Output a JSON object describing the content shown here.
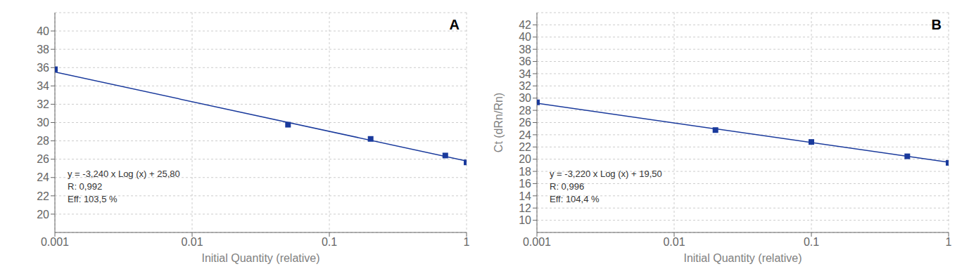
{
  "chart_data": [
    {
      "type": "scatter",
      "title": "A",
      "x_label": "Initial Quantity (relative)",
      "log": "x",
      "grid": true,
      "xlim": [
        0.001,
        1
      ],
      "xticks": [
        0.001,
        0.01,
        0.1,
        1
      ],
      "ylim": [
        18,
        42
      ],
      "yticks": [
        20,
        22,
        24,
        26,
        28,
        30,
        32,
        34,
        36,
        38,
        40
      ],
      "annotations": [
        "y = -3,240 x Log (x) + 25,80",
        "R: 0,992",
        "Eff: 103,5 %"
      ],
      "series": [
        {
          "type": "line",
          "color": "#1a3a9c",
          "x": [
            0.001,
            1
          ],
          "values": [
            35.52,
            25.8
          ]
        },
        {
          "type": "scatter",
          "marker": "square",
          "color": "#1a3a9c",
          "x": [
            0.001,
            0.05,
            0.2,
            0.7,
            1.0
          ],
          "values": [
            35.82,
            29.7653,
            28.2147,
            26.4019,
            25.65
          ]
        }
      ]
    },
    {
      "type": "scatter",
      "title": "B",
      "x_label": "Initial Quantity (relative)",
      "y_label": "Ct (dRn/Rn)",
      "log": "x",
      "grid": true,
      "xlim": [
        0.001,
        1
      ],
      "xticks": [
        0.001,
        0.01,
        0.1,
        1
      ],
      "ylim": [
        8,
        44
      ],
      "yticks": [
        10,
        12,
        14,
        16,
        18,
        20,
        22,
        24,
        26,
        28,
        30,
        32,
        34,
        36,
        38,
        40,
        42
      ],
      "annotations": [
        "y = -3,220 x Log (x) + 19,50",
        "R: 0,996",
        "Eff: 104,4 %"
      ],
      "series": [
        {
          "type": "line",
          "color": "#1a3a9c",
          "x": [
            0.001,
            1
          ],
          "values": [
            29.16,
            19.5
          ]
        },
        {
          "type": "scatter",
          "marker": "square",
          "color": "#1a3a9c",
          "x": [
            0.001,
            0.02,
            0.1,
            0.5,
            1.0
          ],
          "values": [
            29.31,
            24.7707,
            22.82,
            20.4693,
            19.4
          ]
        }
      ]
    }
  ]
}
